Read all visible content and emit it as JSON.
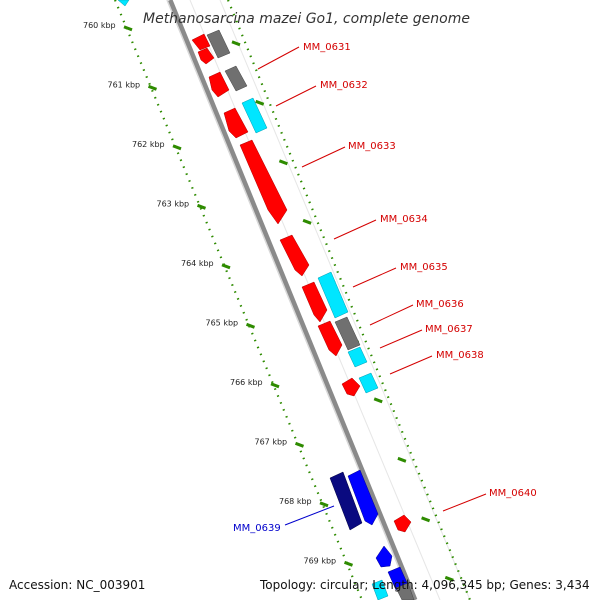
{
  "title": "Methanosarcina mazei Go1, complete genome",
  "footer": {
    "accession": "Accession: NC_003901",
    "summary": "Topology: circular; Length: 4,096,345 bp; Genes: 3,434"
  },
  "colors": {
    "backbone": "#8a8a8a",
    "tick_green": "#2e8b00",
    "forward_red": "#ff0000",
    "cyan": "#00e6ff",
    "gray": "#707070",
    "navy": "#0a0a80",
    "blue": "#0000ff",
    "label_red": "#d40000",
    "label_blue": "#0000cc"
  },
  "ticks": [
    {
      "label": "760 kbp"
    },
    {
      "label": "761 kbp"
    },
    {
      "label": "762 kbp"
    },
    {
      "label": "763 kbp"
    },
    {
      "label": "764 kbp"
    },
    {
      "label": "765 kbp"
    },
    {
      "label": "766 kbp"
    },
    {
      "label": "767 kbp"
    },
    {
      "label": "768 kbp"
    },
    {
      "label": "769 kbp"
    }
  ],
  "gene_labels": [
    {
      "name": "MM_0631",
      "strand": "forward"
    },
    {
      "name": "MM_0632",
      "strand": "forward"
    },
    {
      "name": "MM_0633",
      "strand": "forward"
    },
    {
      "name": "MM_0634",
      "strand": "forward"
    },
    {
      "name": "MM_0635",
      "strand": "forward"
    },
    {
      "name": "MM_0636",
      "strand": "forward"
    },
    {
      "name": "MM_0637",
      "strand": "forward"
    },
    {
      "name": "MM_0638",
      "strand": "forward"
    },
    {
      "name": "MM_0639",
      "strand": "reverse"
    },
    {
      "name": "MM_0640",
      "strand": "forward"
    }
  ]
}
